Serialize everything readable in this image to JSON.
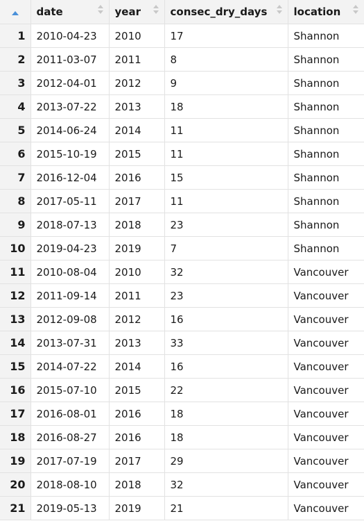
{
  "columns": [
    "date",
    "year",
    "consec_dry_days",
    "location"
  ],
  "rows": [
    {
      "index": "1",
      "date": "2010-04-23",
      "year": "2010",
      "consec_dry_days": "17",
      "location": "Shannon"
    },
    {
      "index": "2",
      "date": "2011-03-07",
      "year": "2011",
      "consec_dry_days": "8",
      "location": "Shannon"
    },
    {
      "index": "3",
      "date": "2012-04-01",
      "year": "2012",
      "consec_dry_days": "9",
      "location": "Shannon"
    },
    {
      "index": "4",
      "date": "2013-07-22",
      "year": "2013",
      "consec_dry_days": "18",
      "location": "Shannon"
    },
    {
      "index": "5",
      "date": "2014-06-24",
      "year": "2014",
      "consec_dry_days": "11",
      "location": "Shannon"
    },
    {
      "index": "6",
      "date": "2015-10-19",
      "year": "2015",
      "consec_dry_days": "11",
      "location": "Shannon"
    },
    {
      "index": "7",
      "date": "2016-12-04",
      "year": "2016",
      "consec_dry_days": "15",
      "location": "Shannon"
    },
    {
      "index": "8",
      "date": "2017-05-11",
      "year": "2017",
      "consec_dry_days": "11",
      "location": "Shannon"
    },
    {
      "index": "9",
      "date": "2018-07-13",
      "year": "2018",
      "consec_dry_days": "23",
      "location": "Shannon"
    },
    {
      "index": "10",
      "date": "2019-04-23",
      "year": "2019",
      "consec_dry_days": "7",
      "location": "Shannon"
    },
    {
      "index": "11",
      "date": "2010-08-04",
      "year": "2010",
      "consec_dry_days": "32",
      "location": "Vancouver"
    },
    {
      "index": "12",
      "date": "2011-09-14",
      "year": "2011",
      "consec_dry_days": "23",
      "location": "Vancouver"
    },
    {
      "index": "13",
      "date": "2012-09-08",
      "year": "2012",
      "consec_dry_days": "16",
      "location": "Vancouver"
    },
    {
      "index": "14",
      "date": "2013-07-31",
      "year": "2013",
      "consec_dry_days": "33",
      "location": "Vancouver"
    },
    {
      "index": "15",
      "date": "2014-07-22",
      "year": "2014",
      "consec_dry_days": "16",
      "location": "Vancouver"
    },
    {
      "index": "16",
      "date": "2015-07-10",
      "year": "2015",
      "consec_dry_days": "22",
      "location": "Vancouver"
    },
    {
      "index": "17",
      "date": "2016-08-01",
      "year": "2016",
      "consec_dry_days": "18",
      "location": "Vancouver"
    },
    {
      "index": "18",
      "date": "2016-08-27",
      "year": "2016",
      "consec_dry_days": "18",
      "location": "Vancouver"
    },
    {
      "index": "19",
      "date": "2017-07-19",
      "year": "2017",
      "consec_dry_days": "29",
      "location": "Vancouver"
    },
    {
      "index": "20",
      "date": "2018-08-10",
      "year": "2018",
      "consec_dry_days": "32",
      "location": "Vancouver"
    },
    {
      "index": "21",
      "date": "2019-05-13",
      "year": "2019",
      "consec_dry_days": "21",
      "location": "Vancouver"
    }
  ],
  "icons": {
    "index_sort": "sort-asc-icon",
    "column_sort": "sort-both-icon"
  },
  "colors": {
    "header_bg": "#f3f3f3",
    "border": "#e2e2e2",
    "sort_active": "#4a90d9"
  }
}
